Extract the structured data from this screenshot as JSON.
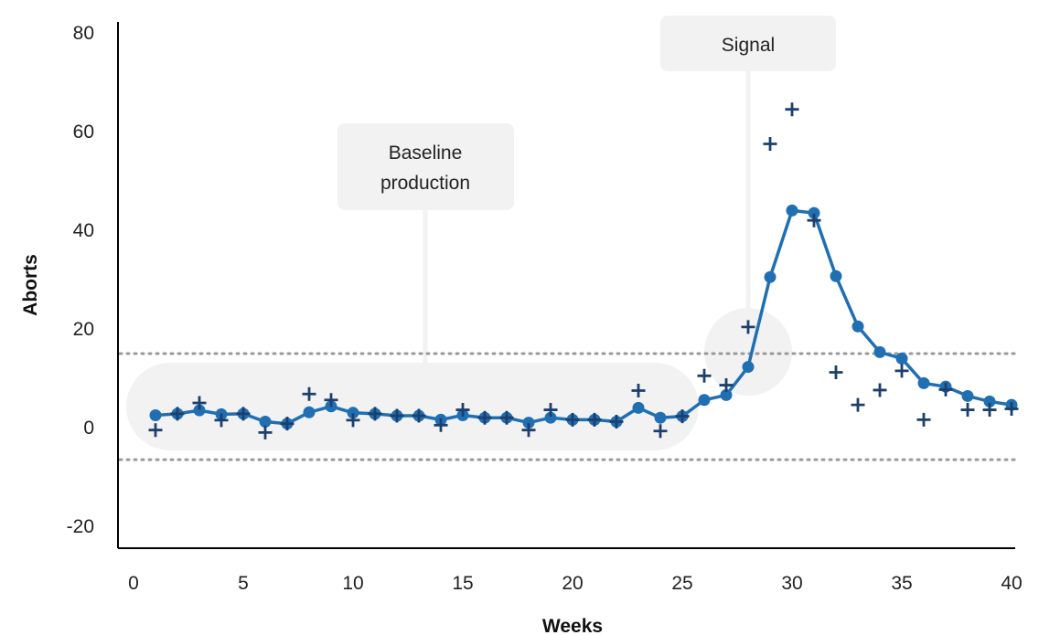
{
  "chart_data": {
    "type": "line",
    "xlabel": "Weeks",
    "ylabel": "Aborts",
    "xlim": [
      0,
      40
    ],
    "ylim": [
      -20,
      80
    ],
    "xticks": [
      0,
      5,
      10,
      15,
      20,
      25,
      30,
      35,
      40
    ],
    "yticks": [
      -20,
      0,
      20,
      40,
      60,
      80
    ],
    "grid": false,
    "control_limits": {
      "upper": 15,
      "lower": -6.5
    },
    "colors": {
      "fitted": "#1f6fb2",
      "observed": "#1c3f6e",
      "limits": "#9a9a9a",
      "annotation_bg": "#f2f2f2"
    },
    "series": [
      {
        "marker": "circle-line",
        "x": [
          1,
          2,
          3,
          4,
          5,
          6,
          7,
          8,
          9,
          10,
          11,
          12,
          13,
          14,
          15,
          16,
          17,
          18,
          19,
          20,
          21,
          22,
          23,
          24,
          25,
          26,
          27,
          28,
          29,
          30,
          31,
          32,
          33,
          34,
          35,
          36,
          37,
          38,
          39,
          40
        ],
        "y": [
          2.5,
          2.8,
          3.5,
          2.7,
          2.8,
          1.2,
          0.8,
          3.1,
          4.3,
          3.0,
          2.8,
          2.4,
          2.4,
          1.6,
          2.5,
          2.0,
          2.0,
          1.0,
          2.0,
          1.6,
          1.6,
          1.2,
          4.0,
          2.0,
          2.3,
          5.6,
          6.6,
          12.3,
          30.5,
          44.0,
          43.5,
          30.7,
          20.5,
          15.3,
          14.0,
          9.0,
          8.3,
          6.4,
          5.3,
          4.6
        ]
      },
      {
        "marker": "plus",
        "x": [
          1,
          2,
          3,
          4,
          5,
          6,
          7,
          8,
          9,
          10,
          11,
          12,
          13,
          14,
          15,
          16,
          17,
          18,
          19,
          20,
          21,
          22,
          23,
          24,
          25,
          26,
          27,
          28,
          29,
          30,
          31,
          32,
          33,
          34,
          35,
          36,
          37,
          38,
          39,
          40
        ],
        "y": [
          -0.5,
          2.8,
          5.0,
          1.5,
          2.8,
          -1.0,
          0.8,
          6.8,
          5.6,
          1.5,
          2.8,
          2.4,
          2.4,
          0.5,
          3.6,
          2.0,
          2.0,
          -0.5,
          3.6,
          1.6,
          1.6,
          1.2,
          7.5,
          -0.7,
          2.3,
          10.5,
          8.6,
          20.4,
          57.5,
          64.5,
          42.0,
          11.2,
          4.6,
          7.6,
          11.5,
          1.6,
          7.7,
          3.6,
          3.6,
          3.8
        ]
      }
    ],
    "annotations": [
      {
        "label": "Baseline production",
        "lines": [
          "Baseline",
          "production"
        ]
      },
      {
        "label": "Signal",
        "lines": [
          "Signal"
        ]
      }
    ]
  }
}
